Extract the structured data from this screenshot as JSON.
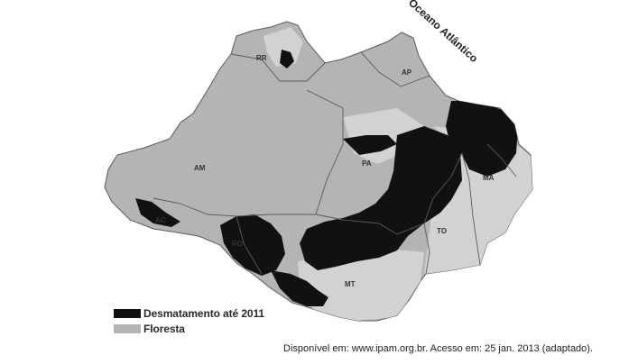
{
  "map": {
    "ocean_label": "Oceano Atlântico",
    "states": [
      {
        "code": "RR",
        "label": "RR"
      },
      {
        "code": "AP",
        "label": "AP"
      },
      {
        "code": "AM",
        "label": "AM"
      },
      {
        "code": "PA",
        "label": "PA"
      },
      {
        "code": "MA",
        "label": "MA"
      },
      {
        "code": "AC",
        "label": "AC"
      },
      {
        "code": "RO",
        "label": "RO"
      },
      {
        "code": "TO",
        "label": "TO"
      },
      {
        "code": "MT",
        "label": "MT"
      }
    ]
  },
  "legend": {
    "items": [
      {
        "label": "Desmatamento até 2011",
        "color": "#111111"
      },
      {
        "label": "Floresta",
        "color": "#b4b4b4"
      }
    ]
  },
  "source": {
    "text": "Disponível em: www.ipam.org.br. Acesso em: 25 jan. 2013 (adaptado)."
  },
  "colors": {
    "forest": "#b4b4b4",
    "non_forest": "#d2d2d2",
    "deforestation": "#111111",
    "borders": "#5a5a5a"
  }
}
